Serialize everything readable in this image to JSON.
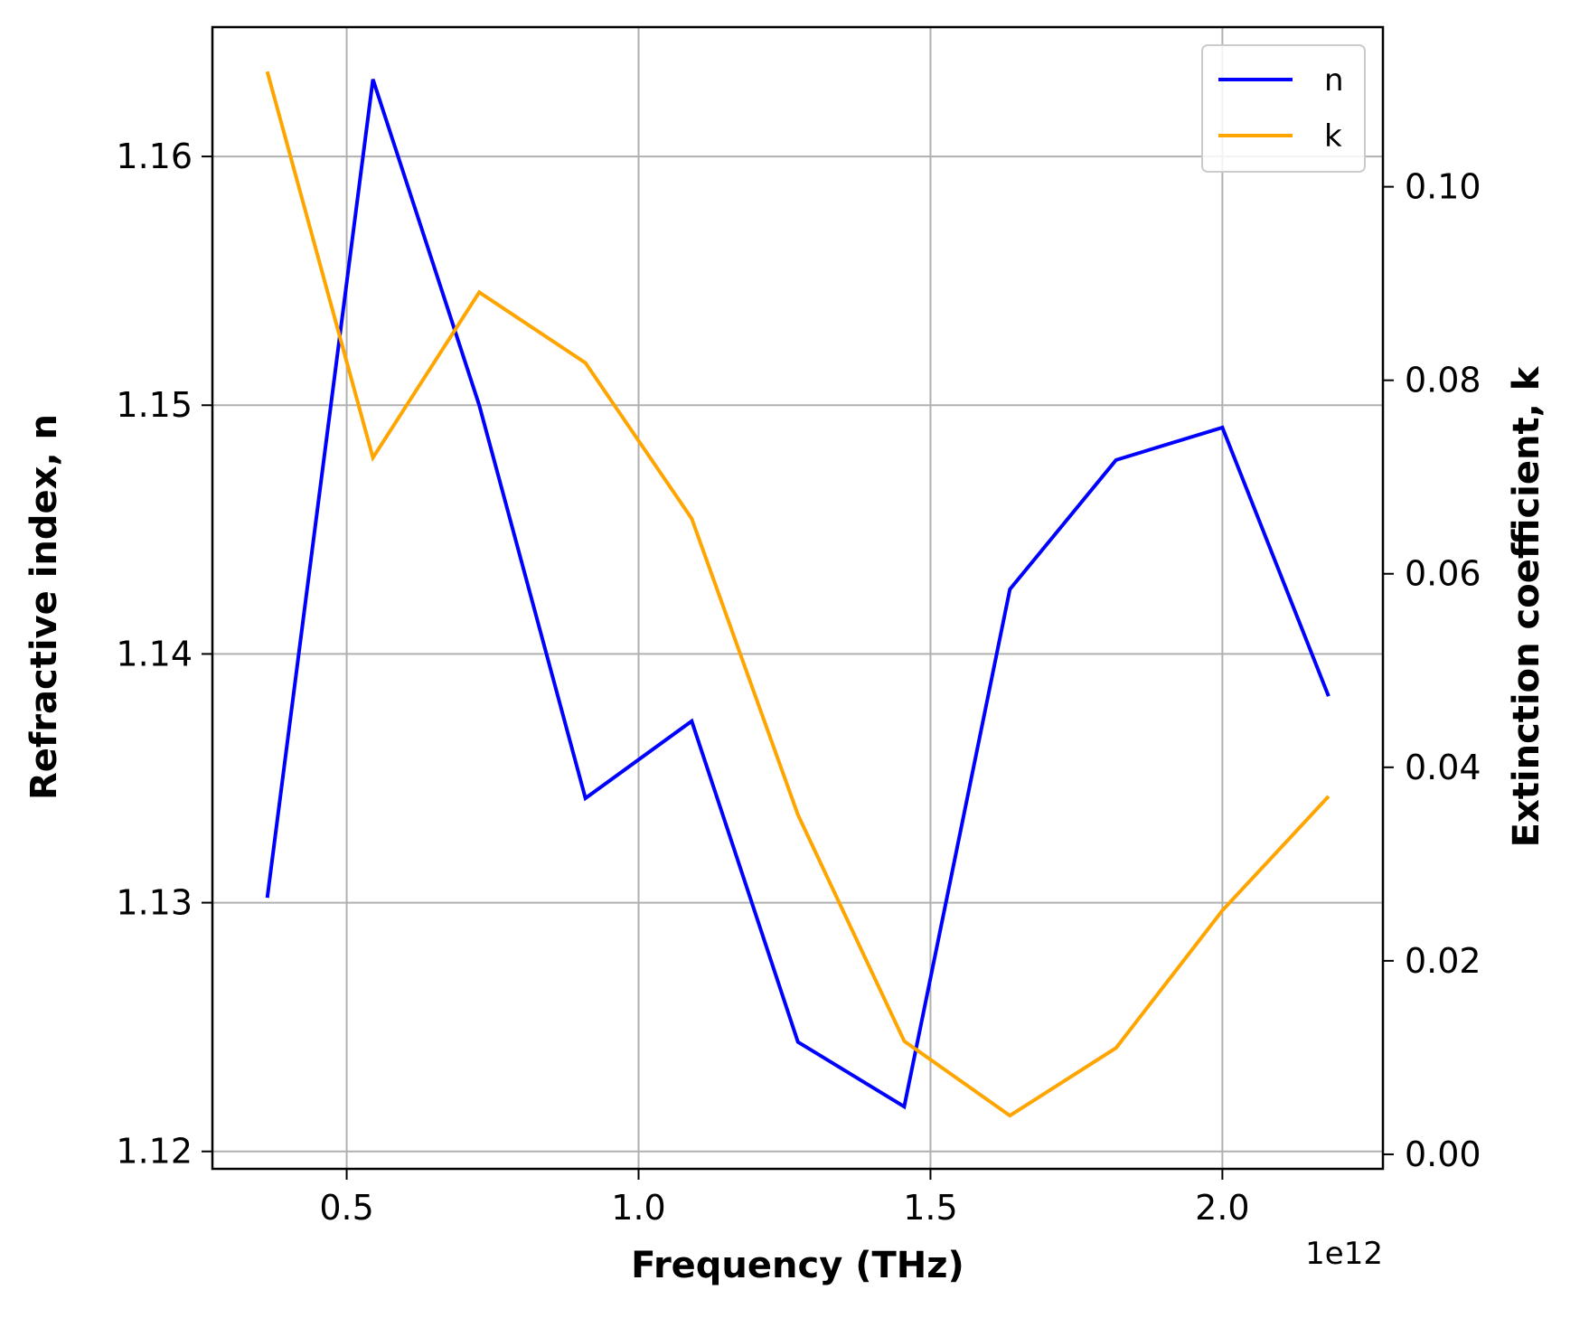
{
  "chart_data": {
    "type": "line",
    "xlabel": "Frequency (THz)",
    "ylabel_left": "Refractive index, n",
    "ylabel_right": "Extinction coefficient, k",
    "x_offset_label": "1e12",
    "x": [
      0.364,
      0.545,
      0.727,
      0.909,
      1.091,
      1.273,
      1.455,
      1.636,
      1.818,
      2.0,
      2.182
    ],
    "x_multiplier": 1000000000000.0,
    "xlim": [
      0.27,
      2.275
    ],
    "ylim_left": [
      1.1193,
      1.1652
    ],
    "ylim_right": [
      -0.0015,
      0.1165
    ],
    "x_ticks": [
      0.5,
      1.0,
      1.5,
      2.0
    ],
    "x_tick_labels": [
      "0.5",
      "1.0",
      "1.5",
      "2.0"
    ],
    "y_left_ticks": [
      1.12,
      1.13,
      1.14,
      1.15,
      1.16
    ],
    "y_left_tick_labels": [
      "1.12",
      "1.13",
      "1.14",
      "1.15",
      "1.16"
    ],
    "y_right_ticks": [
      0.0,
      0.02,
      0.04,
      0.06,
      0.08,
      0.1
    ],
    "y_right_tick_labels": [
      "0.00",
      "0.02",
      "0.04",
      "0.06",
      "0.08",
      "0.10"
    ],
    "grid": true,
    "legend_position": "top-right",
    "series": [
      {
        "name": "n",
        "axis": "left",
        "color": "#0000ff",
        "values": [
          1.1302,
          1.1631,
          1.15,
          1.1342,
          1.1373,
          1.1244,
          1.1218,
          1.1426,
          1.1478,
          1.1491,
          1.1383
        ]
      },
      {
        "name": "k",
        "axis": "right",
        "color": "#ffa500",
        "values": [
          0.1119,
          0.072,
          0.0891,
          0.0818,
          0.0657,
          0.0351,
          0.0117,
          0.004,
          0.011,
          0.0252,
          0.037
        ]
      }
    ]
  }
}
